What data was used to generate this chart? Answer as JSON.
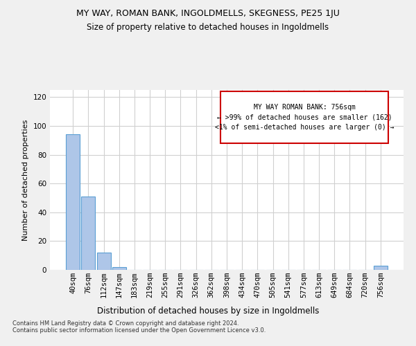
{
  "title": "MY WAY, ROMAN BANK, INGOLDMELLS, SKEGNESS, PE25 1JU",
  "subtitle": "Size of property relative to detached houses in Ingoldmells",
  "xlabel": "Distribution of detached houses by size in Ingoldmells",
  "ylabel": "Number of detached properties",
  "categories": [
    "40sqm",
    "76sqm",
    "112sqm",
    "147sqm",
    "183sqm",
    "219sqm",
    "255sqm",
    "291sqm",
    "326sqm",
    "362sqm",
    "398sqm",
    "434sqm",
    "470sqm",
    "505sqm",
    "541sqm",
    "577sqm",
    "613sqm",
    "649sqm",
    "684sqm",
    "720sqm",
    "756sqm"
  ],
  "values": [
    94,
    51,
    12,
    2,
    0,
    0,
    0,
    0,
    0,
    0,
    0,
    0,
    0,
    0,
    0,
    0,
    0,
    0,
    0,
    0,
    3
  ],
  "bar_color": "#aec6e8",
  "bar_edge_color": "#5a9fd4",
  "annotation_text": "MY WAY ROMAN BANK: 756sqm\n← >99% of detached houses are smaller (162)\n<1% of semi-detached houses are larger (0) →",
  "annotation_box_color": "#ffffff",
  "annotation_border_color": "#cc0000",
  "ylim": [
    0,
    125
  ],
  "yticks": [
    0,
    20,
    40,
    60,
    80,
    100,
    120
  ],
  "footer": "Contains HM Land Registry data © Crown copyright and database right 2024.\nContains public sector information licensed under the Open Government Licence v3.0.",
  "background_color": "#f0f0f0",
  "plot_background_color": "#ffffff",
  "grid_color": "#d0d0d0",
  "title_fontsize": 9,
  "subtitle_fontsize": 8.5,
  "xlabel_fontsize": 8.5,
  "ylabel_fontsize": 8,
  "tick_fontsize": 7.5,
  "ann_fontsize": 7,
  "footer_fontsize": 6
}
